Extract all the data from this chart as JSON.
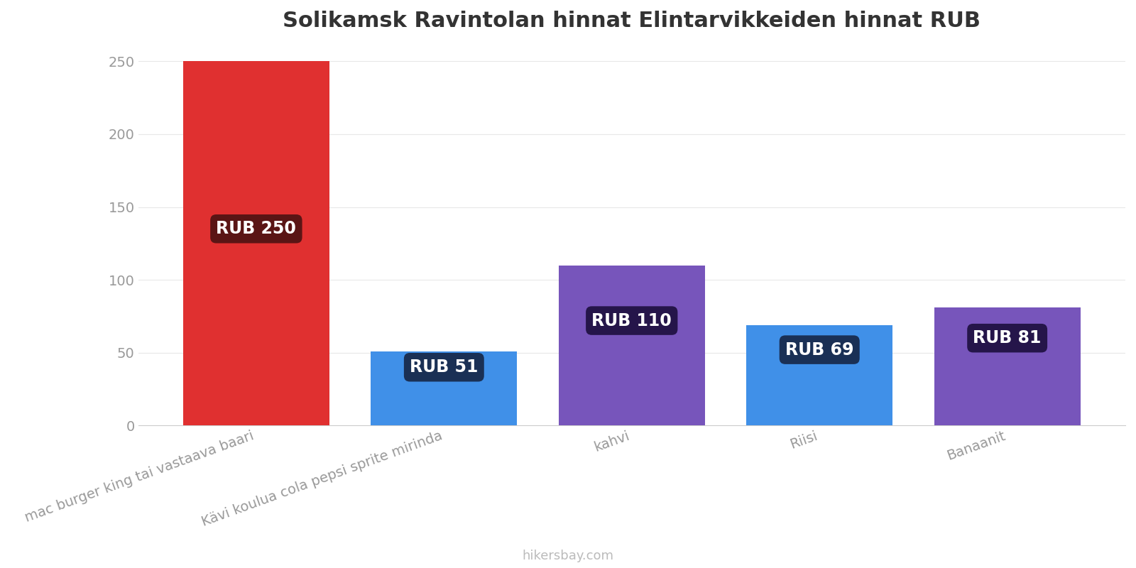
{
  "title": "Solikamsk Ravintolan hinnat Elintarvikkeiden hinnat RUB",
  "categories": [
    "mac burger king tai vastaava baari",
    "Kävi koulua cola pepsi sprite mirinda",
    "kahvi",
    "Riisi",
    "Banaanit"
  ],
  "values": [
    250,
    51,
    110,
    69,
    81
  ],
  "bar_colors": [
    "#e03030",
    "#4090e8",
    "#7755bb",
    "#4090e8",
    "#7755bb"
  ],
  "label_texts": [
    "RUB 250",
    "RUB 51",
    "RUB 110",
    "RUB 69",
    "RUB 81"
  ],
  "label_bg_colors": [
    "#5a1515",
    "#1a3055",
    "#25154a",
    "#1a3055",
    "#25154a"
  ],
  "ylim": [
    0,
    260
  ],
  "yticks": [
    0,
    50,
    100,
    150,
    200,
    250
  ],
  "footer_text": "hikersbay.com",
  "bg_color": "#ffffff",
  "label_fontsize": 17,
  "title_fontsize": 22,
  "tick_fontsize": 14,
  "footer_fontsize": 13,
  "bar_width": 0.78,
  "label_y_positions": [
    135,
    40,
    72,
    52,
    60
  ]
}
